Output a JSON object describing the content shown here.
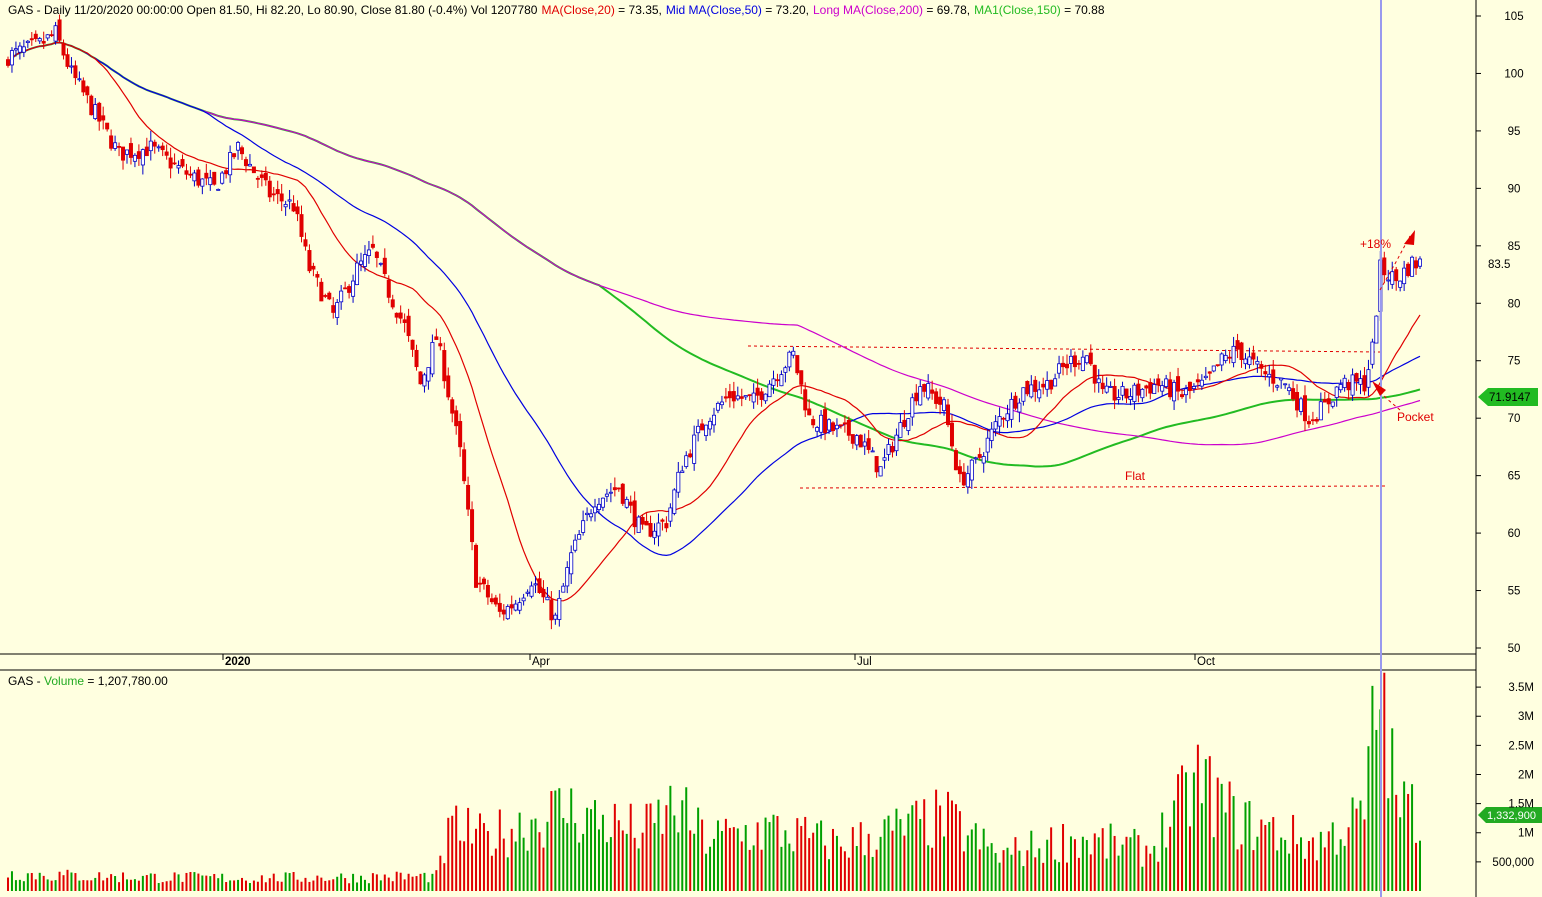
{
  "header": {
    "symbol_info": "GAS - Daily 11/20/2020 00:00:00 Open 81.50, Hi 82.20, Lo 80.90, Close 81.80 (-0.4%) Vol 1207780",
    "ma20_label": "MA(Close,20)",
    "ma20_value": " = 73.35,",
    "ma50_label": "Mid MA(Close,50)",
    "ma50_value": " = 73.20,",
    "ma200_label": "Long MA(Close,200)",
    "ma200_value": " = 69.78,",
    "ma150_label": "MA1(Close,150)",
    "ma150_value": " = 70.88"
  },
  "volume_header": {
    "prefix": "GAS - ",
    "label": "Volume",
    "value": " = 1,207,780.00"
  },
  "colors": {
    "background": "#ffffe0",
    "up": "#0000c8",
    "down": "#e00000",
    "ma20": "#e00000",
    "ma50": "#0000e0",
    "ma200": "#cc00cc",
    "ma150": "#22bb22",
    "cursor": "#9999ee",
    "vol_up": "#00a000",
    "vol_down": "#e00000"
  },
  "chart_data": [
    {
      "type": "candlestick",
      "title": "GAS - Daily",
      "y_ticks": [
        105,
        100,
        95,
        90,
        85,
        80,
        75,
        70,
        65,
        60,
        55,
        50
      ],
      "ylim": [
        49,
        106
      ],
      "x_ticks": [
        "2020",
        "Apr",
        "Jul",
        "Oct"
      ],
      "last_price_label": "83.5",
      "ma_marker_label": "71.9147",
      "annotations": [
        "+18%",
        "Pocket",
        "Flat"
      ],
      "levels": {
        "flat_upper": 76.2,
        "flat_lower": 64.2
      },
      "ohlc_anchors": [
        {
          "i": 0,
          "c": 101.5
        },
        {
          "i": 8,
          "c": 102.5
        },
        {
          "i": 12,
          "c": 103.5
        },
        {
          "i": 16,
          "c": 100
        },
        {
          "i": 22,
          "c": 96.5
        },
        {
          "i": 28,
          "c": 93
        },
        {
          "i": 36,
          "c": 93.5
        },
        {
          "i": 44,
          "c": 91.5
        },
        {
          "i": 52,
          "c": 90
        },
        {
          "i": 58,
          "c": 93.5
        },
        {
          "i": 66,
          "c": 89.5
        },
        {
          "i": 72,
          "c": 88.5
        },
        {
          "i": 76,
          "c": 83
        },
        {
          "i": 82,
          "c": 79
        },
        {
          "i": 88,
          "c": 83
        },
        {
          "i": 92,
          "c": 84.5
        },
        {
          "i": 96,
          "c": 81
        },
        {
          "i": 100,
          "c": 78
        },
        {
          "i": 104,
          "c": 73
        },
        {
          "i": 108,
          "c": 77
        },
        {
          "i": 110,
          "c": 74
        },
        {
          "i": 114,
          "c": 67
        },
        {
          "i": 118,
          "c": 56
        },
        {
          "i": 124,
          "c": 53
        },
        {
          "i": 128,
          "c": 54
        },
        {
          "i": 132,
          "c": 56
        },
        {
          "i": 138,
          "c": 52.5
        },
        {
          "i": 142,
          "c": 58
        },
        {
          "i": 148,
          "c": 63
        },
        {
          "i": 154,
          "c": 64
        },
        {
          "i": 160,
          "c": 60
        },
        {
          "i": 166,
          "c": 61
        },
        {
          "i": 170,
          "c": 66
        },
        {
          "i": 176,
          "c": 70
        },
        {
          "i": 182,
          "c": 72
        },
        {
          "i": 188,
          "c": 71.5
        },
        {
          "i": 194,
          "c": 74
        },
        {
          "i": 198,
          "c": 75.5
        },
        {
          "i": 202,
          "c": 70
        },
        {
          "i": 208,
          "c": 69
        },
        {
          "i": 214,
          "c": 68.5
        },
        {
          "i": 220,
          "c": 65.5
        },
        {
          "i": 226,
          "c": 70
        },
        {
          "i": 230,
          "c": 73
        },
        {
          "i": 236,
          "c": 71
        },
        {
          "i": 240,
          "c": 64.5
        },
        {
          "i": 244,
          "c": 66
        },
        {
          "i": 250,
          "c": 70
        },
        {
          "i": 256,
          "c": 72.5
        },
        {
          "i": 262,
          "c": 73
        },
        {
          "i": 268,
          "c": 75
        },
        {
          "i": 272,
          "c": 75.5
        },
        {
          "i": 276,
          "c": 72
        },
        {
          "i": 282,
          "c": 72
        },
        {
          "i": 290,
          "c": 73
        },
        {
          "i": 296,
          "c": 72
        },
        {
          "i": 302,
          "c": 73
        },
        {
          "i": 306,
          "c": 75
        },
        {
          "i": 310,
          "c": 76
        },
        {
          "i": 316,
          "c": 74
        },
        {
          "i": 322,
          "c": 73
        },
        {
          "i": 328,
          "c": 70
        },
        {
          "i": 332,
          "c": 71
        },
        {
          "i": 336,
          "c": 73
        },
        {
          "i": 342,
          "c": 73
        },
        {
          "i": 344,
          "c": 76
        },
        {
          "i": 346,
          "c": 83
        },
        {
          "i": 350,
          "c": 82
        },
        {
          "i": 354,
          "c": 83.5
        },
        {
          "i": 356,
          "c": 83.5
        }
      ],
      "ma_series": [
        {
          "name": "MA(Close,20)",
          "value": 73.35
        },
        {
          "name": "Mid MA(Close,50)",
          "value": 73.2
        },
        {
          "name": "Long MA(Close,200)",
          "value": 69.78
        },
        {
          "name": "MA1(Close,150)",
          "value": 70.88
        }
      ]
    },
    {
      "type": "bar",
      "title": "GAS - Volume",
      "y_ticks": [
        "3.5M",
        "3M",
        "2.5M",
        "2M",
        "1.5M",
        "1M",
        "500,000"
      ],
      "y_tick_values": [
        3500000,
        3000000,
        2500000,
        2000000,
        1500000,
        1000000,
        500000
      ],
      "ylim": [
        0,
        3700000
      ],
      "last_volume_label": "1,332,900",
      "volume_anchors": [
        {
          "i": 0,
          "v": 300000
        },
        {
          "i": 20,
          "v": 250000
        },
        {
          "i": 60,
          "v": 220000
        },
        {
          "i": 108,
          "v": 250000
        },
        {
          "i": 112,
          "v": 1100000
        },
        {
          "i": 120,
          "v": 900000
        },
        {
          "i": 140,
          "v": 1400000
        },
        {
          "i": 160,
          "v": 1000000
        },
        {
          "i": 168,
          "v": 1450000
        },
        {
          "i": 176,
          "v": 900000
        },
        {
          "i": 192,
          "v": 1050000
        },
        {
          "i": 210,
          "v": 800000
        },
        {
          "i": 236,
          "v": 1250000
        },
        {
          "i": 250,
          "v": 600000
        },
        {
          "i": 268,
          "v": 900000
        },
        {
          "i": 288,
          "v": 700000
        },
        {
          "i": 300,
          "v": 1900000
        },
        {
          "i": 310,
          "v": 1200000
        },
        {
          "i": 330,
          "v": 800000
        },
        {
          "i": 342,
          "v": 1300000
        },
        {
          "i": 344,
          "v": 2600000
        },
        {
          "i": 346,
          "v": 3500000
        },
        {
          "i": 350,
          "v": 1500000
        },
        {
          "i": 356,
          "v": 1332900
        }
      ]
    }
  ]
}
